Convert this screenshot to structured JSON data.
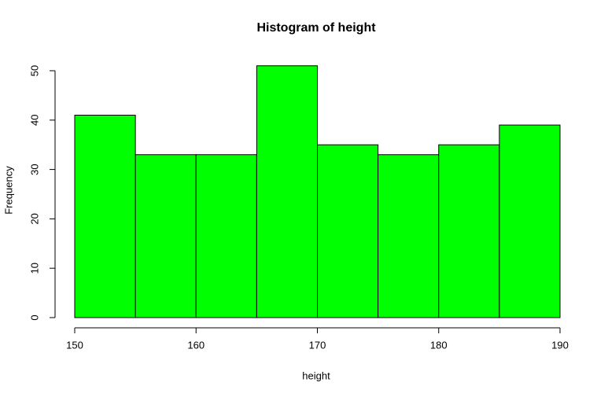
{
  "chart_data": {
    "type": "histogram",
    "title": "Histogram of height",
    "x_label": "height",
    "y_label": "Frequency",
    "bins": [
      150,
      155,
      160,
      165,
      170,
      175,
      180,
      185,
      190
    ],
    "values": [
      41,
      33,
      33,
      51,
      35,
      33,
      35,
      39
    ],
    "color": "#00ff00",
    "xlim": [
      150,
      190
    ],
    "xticks": [
      150,
      160,
      170,
      180,
      190
    ],
    "ylim": [
      0,
      51
    ],
    "yticks": [
      0,
      10,
      20,
      30,
      40,
      50
    ],
    "grid": false
  }
}
